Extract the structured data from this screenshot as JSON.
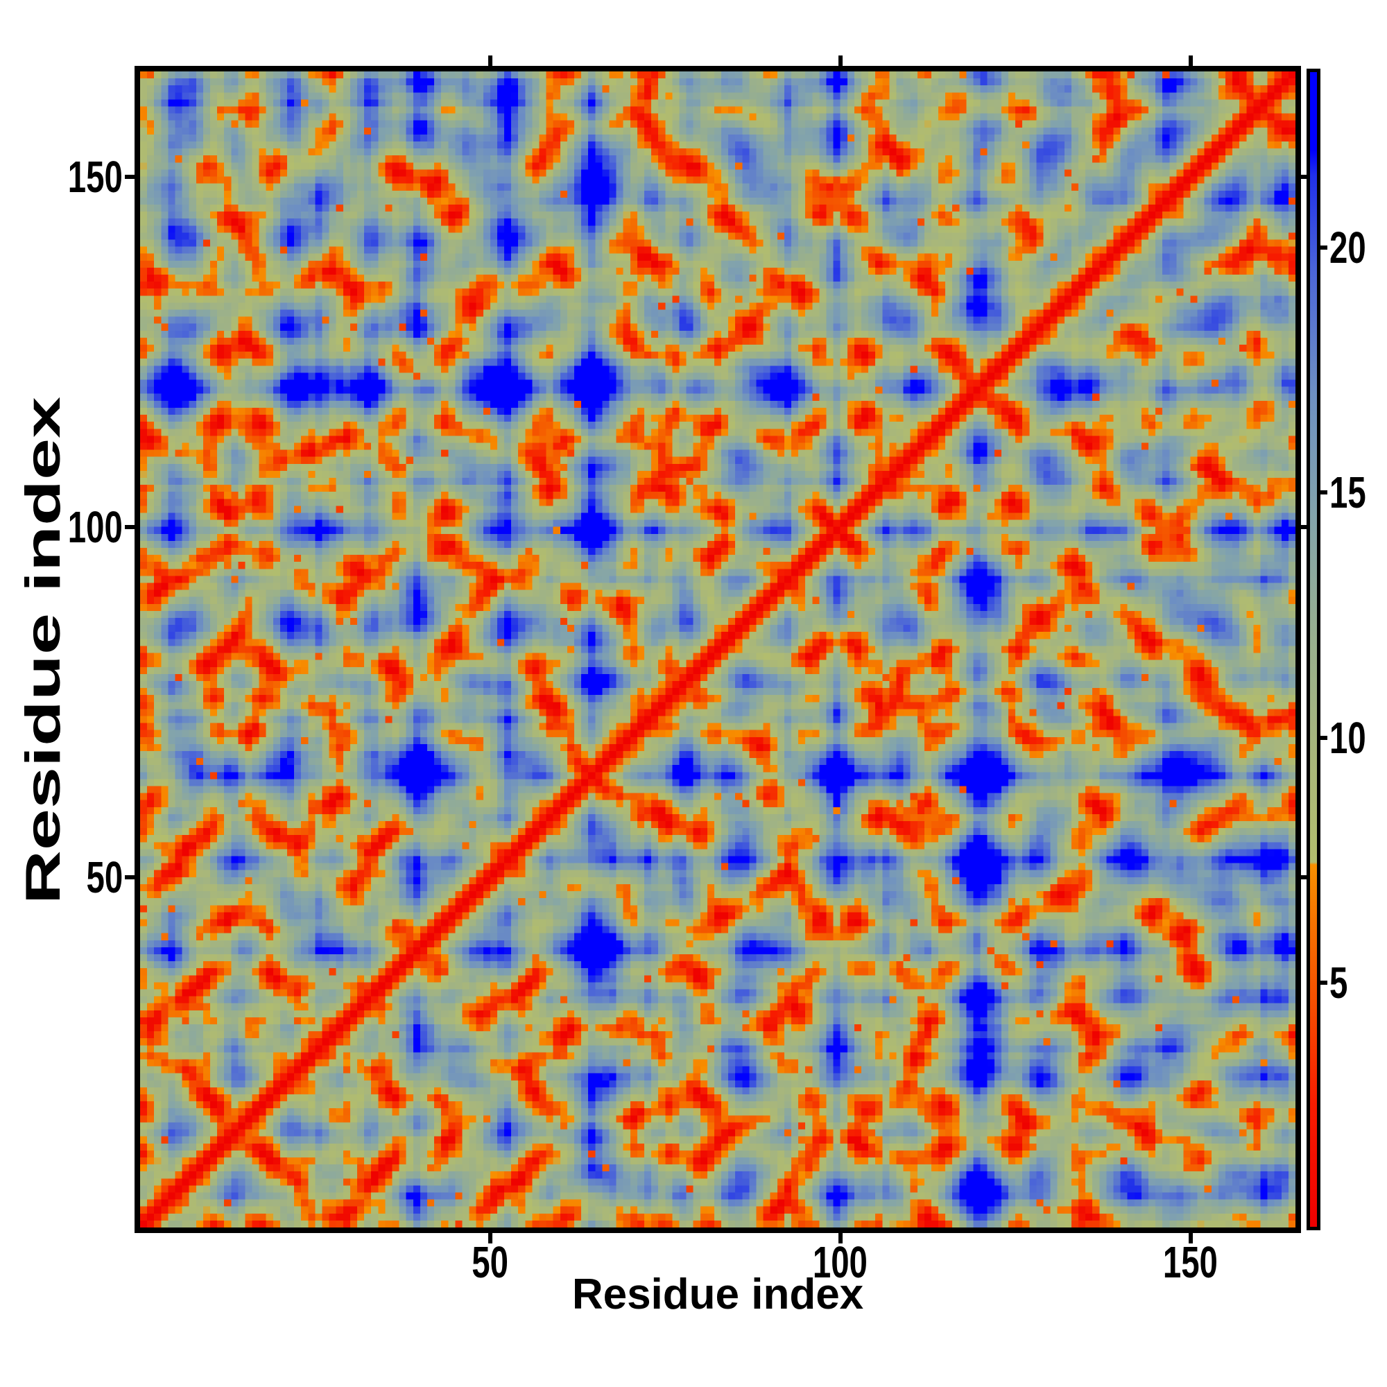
{
  "figure": {
    "background": "#ffffff",
    "frame_color": "#000000",
    "tick_color": "#000000",
    "label_color": "#000000"
  },
  "chart_data": {
    "type": "heatmap",
    "title": "",
    "xlabel": "Residue index",
    "ylabel": "Residue index",
    "x_ticks": [
      50,
      100,
      150
    ],
    "y_ticks": [
      50,
      100,
      150
    ],
    "x_range": [
      1,
      165
    ],
    "y_range": [
      1,
      165
    ],
    "n_residues": 165,
    "grid": false,
    "value_range": [
      0,
      23.6
    ],
    "colorbar": {
      "position": "right",
      "ticks": [
        5,
        10,
        15,
        20
      ],
      "clamp_above": 22,
      "clamp_color": "#0000ff"
    },
    "colormap_stops": [
      {
        "v": 0.0,
        "c": "#ee0000"
      },
      {
        "v": 2.5,
        "c": "#f71c00"
      },
      {
        "v": 4.5,
        "c": "#f54c00"
      },
      {
        "v": 6.2,
        "c": "#f57200"
      },
      {
        "v": 7.4,
        "c": "#f89000"
      },
      {
        "v": 7.45,
        "c": "#b2bd6d"
      },
      {
        "v": 9.5,
        "c": "#a9b77a"
      },
      {
        "v": 12.0,
        "c": "#98af8e"
      },
      {
        "v": 14.5,
        "c": "#83a4ab"
      },
      {
        "v": 17.0,
        "c": "#6e90c2"
      },
      {
        "v": 19.5,
        "c": "#4c66d8"
      },
      {
        "v": 21.5,
        "c": "#2030ea"
      },
      {
        "v": 22.0,
        "c": "#0000ff"
      },
      {
        "v": 23.6,
        "c": "#0000ff"
      }
    ],
    "diagonal": {
      "value": 0,
      "color": "#ee0000",
      "direction": "bottom-left to top-right"
    },
    "symmetric": true,
    "pattern_description": "Symmetric residue-residue distance matrix of a 165-residue protein. Bright red main diagonal flanked by orange bands (sequence-local distances), scattered orange contact spots and short parallel/anti-parallel contact streaks off the diagonal, an olive-green web of mid-range (8-14) distances, and large royal-blue patches where the distance exceeds ~22 (clamped to pure blue).",
    "generator": {
      "seed": 20,
      "bond_length": 3.8,
      "persistence": 0.72,
      "noise": 0.65,
      "confine_radius": 18,
      "confine_strength": 1.1,
      "distance_offset": 2.0,
      "texture_noise": 0.55,
      "speckle_probability": 0.013,
      "speckle_value_range": [
        3.8,
        6.8
      ]
    }
  }
}
